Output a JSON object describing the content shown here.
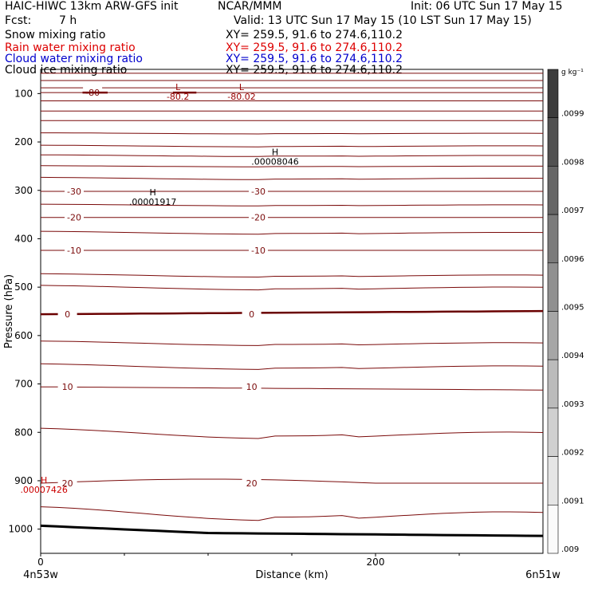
{
  "header": {
    "title": "HAIC-HIWC 13km ARW-GFS init",
    "center": "NCAR/MMM",
    "init": "Init: 06 UTC Sun 17 May 15",
    "fcst_label": "Fcst:",
    "fcst_value": "7 h",
    "valid": "Valid: 13 UTC Sun 17 May 15 (10 LST Sun 17 May 15)",
    "fields": [
      {
        "label": "Snow mixing ratio",
        "xy": "XY= 259.5, 91.6 to 274.6,110.2",
        "color": "#000000"
      },
      {
        "label": "Rain water mixing ratio",
        "xy": "XY= 259.5, 91.6 to 274.6,110.2",
        "color": "#dd0000"
      },
      {
        "label": "Cloud water mixing ratio",
        "xy": "XY= 259.5, 91.6 to 274.6,110.2",
        "color": "#0000cc"
      },
      {
        "label": "Cloud ice mixing ratio",
        "xy": "XY= 259.5, 91.6 to 274.6,110.2",
        "color": "#000000"
      }
    ]
  },
  "chart_data": {
    "type": "line",
    "ylabel": "Pressure (hPa)",
    "xlabel": "Distance (km)",
    "x_range": [
      0,
      300
    ],
    "y_range": [
      1050,
      50
    ],
    "y_ticks": [
      100,
      200,
      300,
      400,
      500,
      600,
      700,
      800,
      900,
      1000
    ],
    "x_ticks": [
      0,
      200
    ],
    "x_endpoint_labels": [
      "4n53w",
      "6n51w"
    ],
    "colorbar": {
      "unit": "g kg⁻¹",
      "labels": [
        ".0099",
        ".0098",
        ".0097",
        ".0096",
        ".0095",
        ".0094",
        ".0093",
        ".0092",
        ".0091",
        ".009"
      ]
    },
    "temperature_contours": [
      {
        "label": "-80",
        "label_x": 31,
        "p": 98
      },
      {
        "label": "-30",
        "label_x": 20,
        "p": 302,
        "label_x2": 130
      },
      {
        "label": "-20",
        "label_x": 20,
        "p": 356,
        "label_x2": 130
      },
      {
        "label": "-10",
        "label_x": 20,
        "p": 424,
        "label_x2": 130
      },
      {
        "label": "0",
        "label_x": 16,
        "p": 556,
        "label_x2": 126
      },
      {
        "label": "10",
        "label_x": 16,
        "p": 706,
        "label_x2": 126
      },
      {
        "label": "20",
        "label_x": 16,
        "p": 905,
        "label_x2": 126
      }
    ],
    "extrema": [
      {
        "mark": "L",
        "value": "-80.2",
        "x": 82,
        "p": 98,
        "color": "#990000"
      },
      {
        "mark": "L",
        "value": "-80.02",
        "x": 120,
        "p": 98,
        "color": "#990000"
      },
      {
        "mark": "H",
        "value": ".00008046",
        "x": 140,
        "p": 232,
        "color": "#000000"
      },
      {
        "mark": "H",
        "value": ".00001917",
        "x": 67,
        "p": 315,
        "color": "#000000"
      },
      {
        "mark": "H",
        "value": ".00007426",
        "x": 2,
        "p": 910,
        "color": "#cc0000"
      }
    ]
  }
}
